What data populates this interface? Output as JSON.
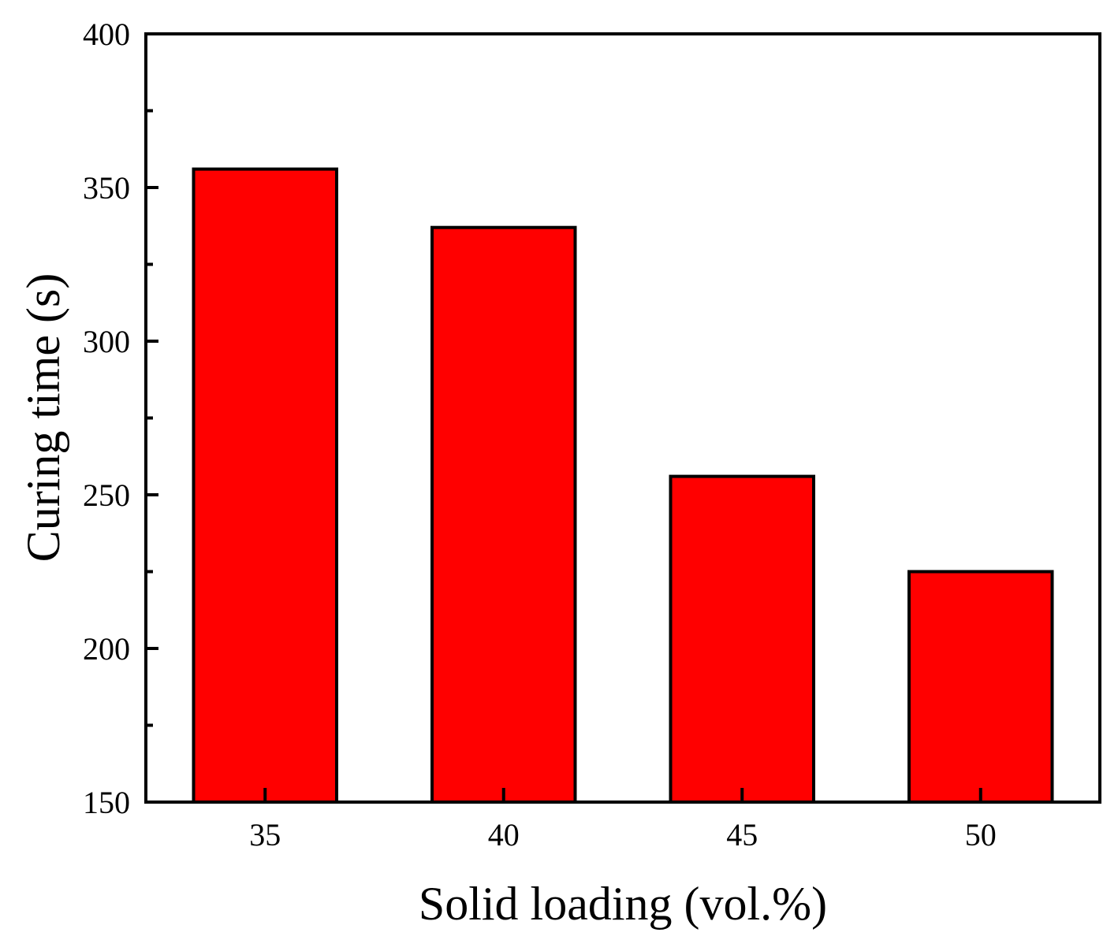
{
  "chart_data": {
    "type": "bar",
    "title": "",
    "xlabel": "Solid loading (vol.%)",
    "ylabel": "Curing time (s)",
    "categories": [
      "35",
      "40",
      "45",
      "50"
    ],
    "values": [
      356,
      337,
      256,
      225
    ],
    "ylim": [
      150,
      400
    ],
    "yticks": [
      "150",
      "200",
      "250",
      "300",
      "350",
      "400"
    ],
    "grid": false,
    "legend": "none",
    "bar_color": "#ff0000",
    "edge_color": "#000000"
  }
}
